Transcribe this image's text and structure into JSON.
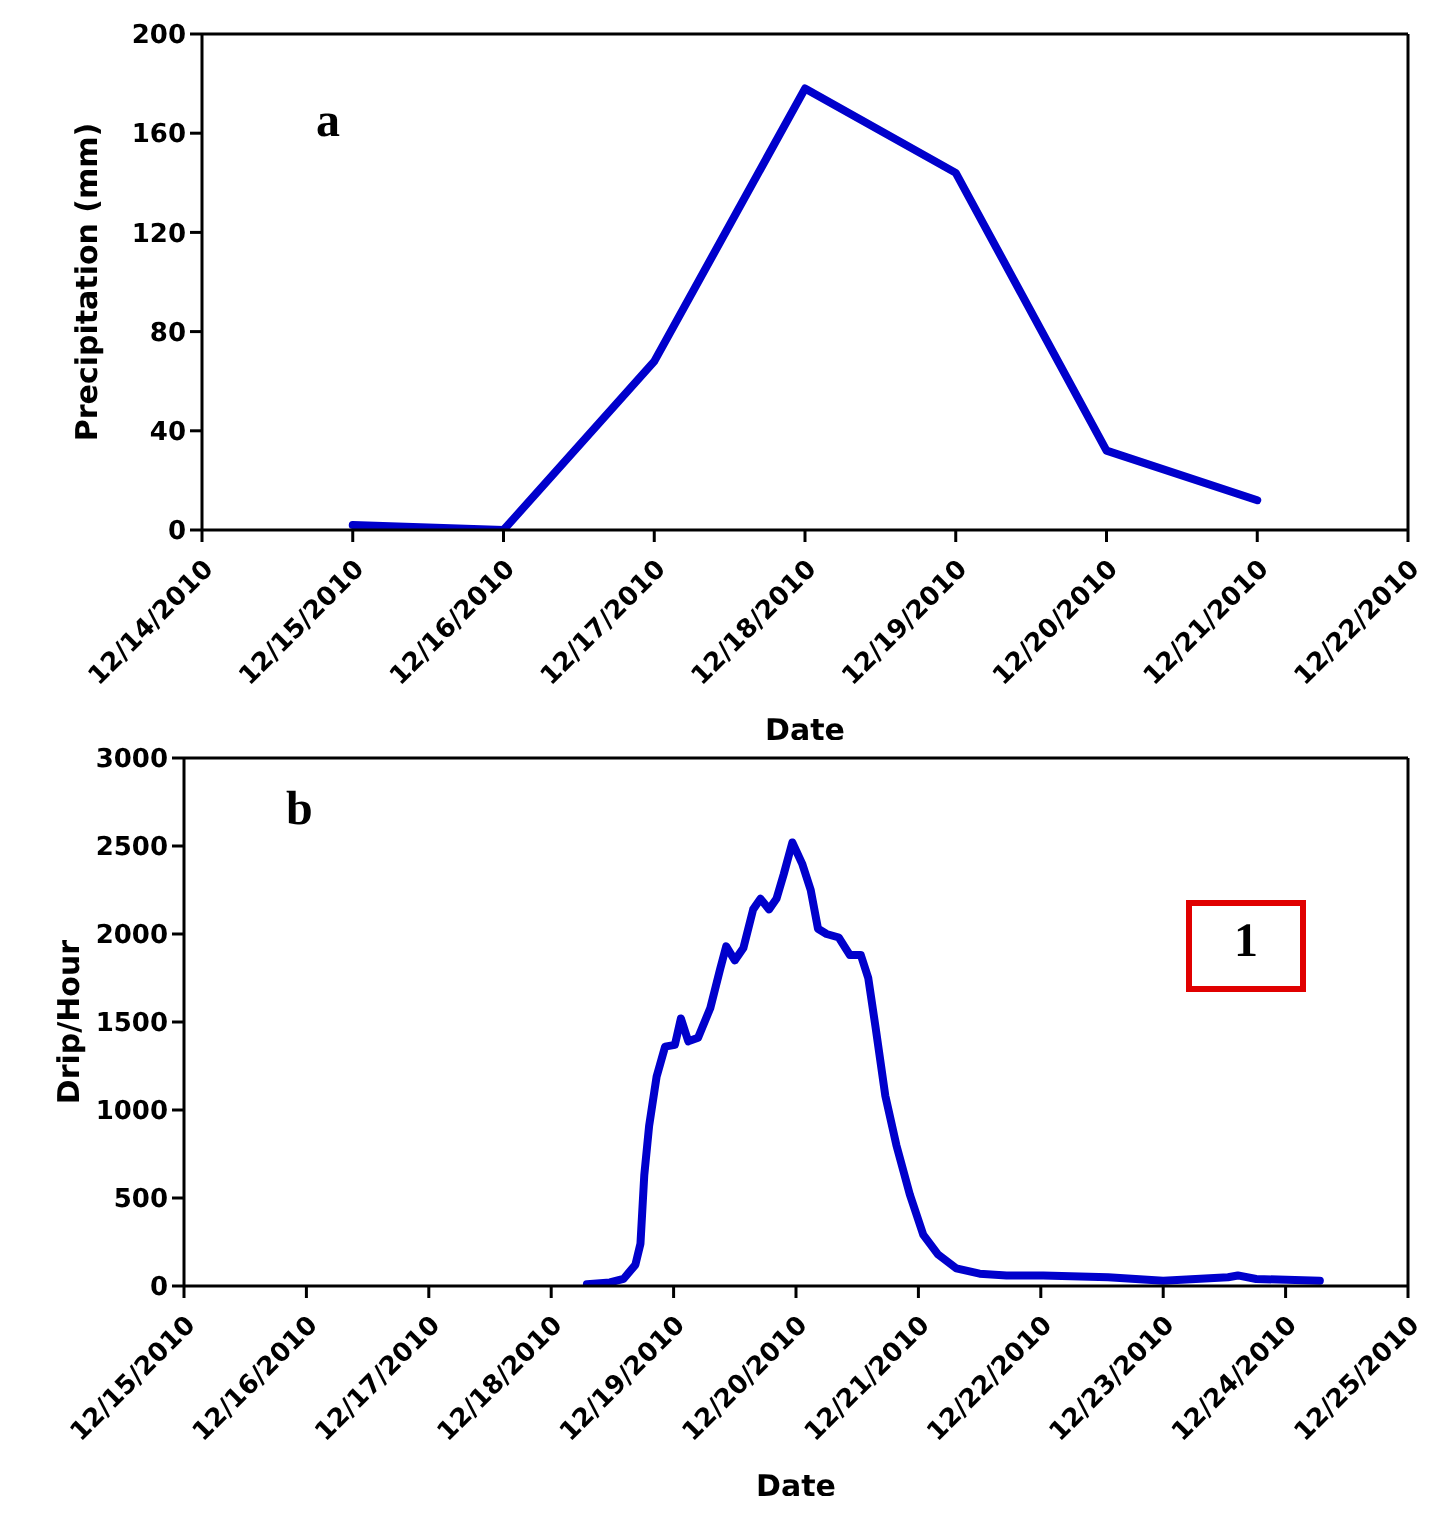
{
  "chart_data": [
    {
      "type": "line",
      "xlabel": "Date",
      "ylabel": "Precipitation (mm)",
      "annotations": [
        "a"
      ],
      "x": [
        "2010-12-15",
        "2010-12-16",
        "2010-12-17",
        "2010-12-18",
        "2010-12-19",
        "2010-12-20",
        "2010-12-21"
      ],
      "series": [
        {
          "color": "#0000cc",
          "values": [
            2,
            0,
            68,
            178,
            144,
            32,
            12
          ]
        }
      ],
      "xlim": [
        "2010-12-14",
        "2010-12-22"
      ],
      "xticks": [
        {
          "value": "2010-12-14",
          "label": "12/14/2010"
        },
        {
          "value": "2010-12-15",
          "label": "12/15/2010"
        },
        {
          "value": "2010-12-16",
          "label": "12/16/2010"
        },
        {
          "value": "2010-12-17",
          "label": "12/17/2010"
        },
        {
          "value": "2010-12-18",
          "label": "12/18/2010"
        },
        {
          "value": "2010-12-19",
          "label": "12/19/2010"
        },
        {
          "value": "2010-12-20",
          "label": "12/20/2010"
        },
        {
          "value": "2010-12-21",
          "label": "12/21/2010"
        },
        {
          "value": "2010-12-22",
          "label": "12/22/2010"
        }
      ],
      "ylim": [
        0,
        200
      ],
      "yticks": [
        0,
        40,
        80,
        120,
        160,
        200
      ]
    },
    {
      "type": "line",
      "xlabel": "Date",
      "ylabel": "Drip/Hour",
      "annotations": [
        "b",
        "1"
      ],
      "x": [
        "2010-12-18T07:00",
        "2010-12-18T11:30",
        "2010-12-18T14:10",
        "2010-12-18T16:30",
        "2010-12-18T17:30",
        "2010-12-18T18:15",
        "2010-12-18T19:12",
        "2010-12-18T20:40",
        "2010-12-18T22:20",
        "2010-12-19T00:15",
        "2010-12-19T01:26",
        "2010-12-19T02:53",
        "2010-12-19T04:48",
        "2010-12-19T07:12",
        "2010-12-19T09:07",
        "2010-12-19T10:19",
        "2010-12-19T12:00",
        "2010-12-19T13:41",
        "2010-12-19T15:36",
        "2010-12-19T17:02",
        "2010-12-19T18:43",
        "2010-12-19T20:10",
        "2010-12-19T21:36",
        "2010-12-19T23:17",
        "2010-12-20T01:12",
        "2010-12-20T02:53",
        "2010-12-20T04:19",
        "2010-12-20T06:00",
        "2010-12-20T08:24",
        "2010-12-20T10:34",
        "2010-12-20T12:43",
        "2010-12-20T14:10",
        "2010-12-20T15:36",
        "2010-12-20T17:31",
        "2010-12-20T19:41",
        "2010-12-20T22:19",
        "2010-12-21T00:58",
        "2010-12-21T03:50",
        "2010-12-21T07:26",
        "2010-12-21T12:00",
        "2010-12-21T17:17",
        "2010-12-22T00:29",
        "2010-12-22T13:12",
        "2010-12-23T00:00",
        "2010-12-23T12:43",
        "2010-12-23T14:38",
        "2010-12-23T18:14",
        "2010-12-24T06:43"
      ],
      "series": [
        {
          "color": "#0000cc",
          "values": [
            10,
            20,
            40,
            120,
            240,
            630,
            910,
            1190,
            1360,
            1370,
            1520,
            1390,
            1410,
            1580,
            1800,
            1930,
            1850,
            1920,
            2140,
            2200,
            2140,
            2200,
            2340,
            2520,
            2400,
            2250,
            2030,
            2000,
            1980,
            1880,
            1880,
            1750,
            1470,
            1080,
            800,
            520,
            290,
            180,
            100,
            70,
            60,
            60,
            50,
            30,
            50,
            60,
            40,
            30
          ]
        }
      ],
      "xlim": [
        "2010-12-15",
        "2010-12-25"
      ],
      "xticks": [
        {
          "value": "2010-12-15",
          "label": "12/15/2010"
        },
        {
          "value": "2010-12-16",
          "label": "12/16/2010"
        },
        {
          "value": "2010-12-17",
          "label": "12/17/2010"
        },
        {
          "value": "2010-12-18",
          "label": "12/18/2010"
        },
        {
          "value": "2010-12-19",
          "label": "12/19/2010"
        },
        {
          "value": "2010-12-20",
          "label": "12/20/2010"
        },
        {
          "value": "2010-12-21",
          "label": "12/21/2010"
        },
        {
          "value": "2010-12-22",
          "label": "12/22/2010"
        },
        {
          "value": "2010-12-23",
          "label": "12/23/2010"
        },
        {
          "value": "2010-12-24",
          "label": "12/24/2010"
        },
        {
          "value": "2010-12-25",
          "label": "12/25/2010"
        }
      ],
      "ylim": [
        0,
        3000
      ],
      "yticks": [
        0,
        500,
        1000,
        1500,
        2000,
        2500,
        3000
      ]
    }
  ]
}
